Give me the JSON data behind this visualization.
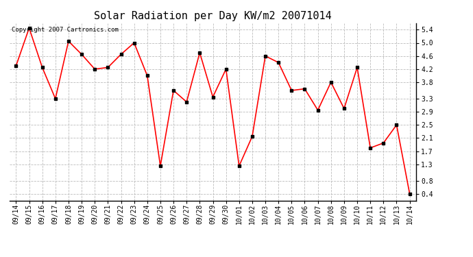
{
  "title": "Solar Radiation per Day KW/m2 20071014",
  "copyright_text": "Copyright 2007 Cartronics.com",
  "labels": [
    "09/14",
    "09/15",
    "09/16",
    "09/17",
    "09/18",
    "09/19",
    "09/20",
    "09/21",
    "09/22",
    "09/23",
    "09/24",
    "09/25",
    "09/26",
    "09/27",
    "09/28",
    "09/29",
    "09/30",
    "10/01",
    "10/02",
    "10/03",
    "10/04",
    "10/05",
    "10/06",
    "10/07",
    "10/08",
    "10/09",
    "10/10",
    "10/11",
    "10/12",
    "10/13",
    "10/14"
  ],
  "values": [
    4.3,
    5.45,
    4.25,
    3.3,
    5.05,
    4.65,
    4.2,
    4.25,
    4.65,
    5.0,
    4.0,
    1.25,
    3.55,
    3.2,
    4.7,
    3.35,
    4.2,
    1.25,
    2.15,
    4.6,
    4.4,
    3.55,
    3.6,
    2.95,
    3.8,
    3.0,
    4.25,
    1.8,
    1.95,
    2.5,
    0.4
  ],
  "line_color": "#ff0000",
  "marker_color": "#000000",
  "bg_color": "#ffffff",
  "plot_bg_color": "#ffffff",
  "grid_color": "#bbbbbb",
  "ylim": [
    0.2,
    5.6
  ],
  "yticks": [
    0.4,
    0.8,
    1.3,
    1.7,
    2.1,
    2.5,
    2.9,
    3.3,
    3.8,
    4.2,
    4.6,
    5.0,
    5.4
  ],
  "title_fontsize": 11,
  "tick_fontsize": 7,
  "copyright_fontsize": 6.5
}
